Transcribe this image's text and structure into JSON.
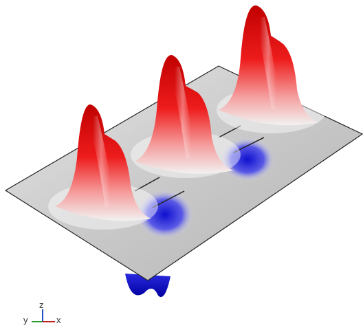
{
  "axes_triad": {
    "y": "y",
    "z": "z",
    "x": "x"
  }
}
